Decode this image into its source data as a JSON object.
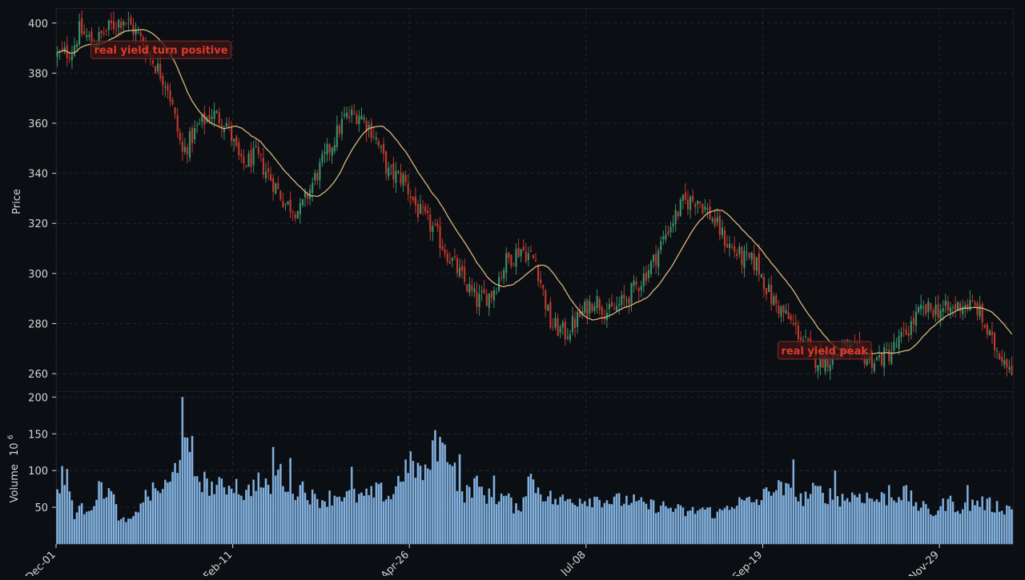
{
  "chart_data": {
    "type": "candlestick",
    "price_panel": {
      "ylabel": "Price",
      "ylim": [
        253,
        406
      ],
      "yticks": [
        260,
        280,
        300,
        320,
        340,
        360,
        380,
        400
      ],
      "moving_average": {
        "color": "#d8b67c"
      },
      "grid": true
    },
    "volume_panel": {
      "ylabel": "Volume",
      "ylabel_exponent": "10",
      "ylabel_power": "6",
      "ylim": [
        0,
        208
      ],
      "yticks": [
        50,
        100,
        150,
        200
      ],
      "bar_color": "#8ab4dc"
    },
    "x_axis": {
      "n_days": 390,
      "ticks": [
        {
          "label": "Dec-01",
          "index": 0
        },
        {
          "label": "Feb-11",
          "index": 72
        },
        {
          "label": "Apr-26",
          "index": 144
        },
        {
          "label": "Jul-08",
          "index": 216
        },
        {
          "label": "Sep-19",
          "index": 288
        },
        {
          "label": "Nov-29",
          "index": 360
        }
      ]
    },
    "colors": {
      "up": "#3d8f6a",
      "down": "#c0392b",
      "background": "#0b0e13",
      "grid": "#2a2f38"
    },
    "annotations": [
      {
        "text": "real yield turn positive",
        "index": 15,
        "price": 389
      },
      {
        "text": "real yield peak",
        "index": 295,
        "price": 269
      }
    ],
    "price_path": [
      [
        0,
        387
      ],
      [
        6,
        389
      ],
      [
        9,
        397
      ],
      [
        15,
        392
      ],
      [
        21,
        398
      ],
      [
        27,
        402
      ],
      [
        33,
        395
      ],
      [
        39,
        385
      ],
      [
        45,
        375
      ],
      [
        51,
        348
      ],
      [
        57,
        358
      ],
      [
        63,
        364
      ],
      [
        69,
        360
      ],
      [
        75,
        343
      ],
      [
        81,
        347
      ],
      [
        87,
        338
      ],
      [
        93,
        328
      ],
      [
        99,
        325
      ],
      [
        105,
        338
      ],
      [
        111,
        350
      ],
      [
        117,
        362
      ],
      [
        123,
        364
      ],
      [
        129,
        356
      ],
      [
        135,
        340
      ],
      [
        141,
        338
      ],
      [
        147,
        325
      ],
      [
        153,
        318
      ],
      [
        159,
        308
      ],
      [
        165,
        298
      ],
      [
        171,
        289
      ],
      [
        177,
        292
      ],
      [
        183,
        305
      ],
      [
        189,
        310
      ],
      [
        195,
        305
      ],
      [
        201,
        280
      ],
      [
        207,
        276
      ],
      [
        213,
        283
      ],
      [
        219,
        290
      ],
      [
        225,
        284
      ],
      [
        231,
        289
      ],
      [
        237,
        296
      ],
      [
        243,
        305
      ],
      [
        249,
        318
      ],
      [
        255,
        328
      ],
      [
        261,
        330
      ],
      [
        267,
        322
      ],
      [
        273,
        312
      ],
      [
        279,
        306
      ],
      [
        285,
        304
      ],
      [
        291,
        290
      ],
      [
        297,
        283
      ],
      [
        303,
        275
      ],
      [
        309,
        266
      ],
      [
        315,
        266
      ],
      [
        321,
        270
      ],
      [
        327,
        268
      ],
      [
        333,
        265
      ],
      [
        339,
        268
      ],
      [
        345,
        275
      ],
      [
        351,
        284
      ],
      [
        357,
        286
      ],
      [
        363,
        285
      ],
      [
        369,
        288
      ],
      [
        375,
        286
      ],
      [
        381,
        272
      ],
      [
        389,
        263
      ]
    ],
    "volume_path": [
      [
        0,
        72
      ],
      [
        4,
        88
      ],
      [
        7,
        42
      ],
      [
        14,
        54
      ],
      [
        18,
        78
      ],
      [
        22,
        68
      ],
      [
        26,
        30
      ],
      [
        31,
        32
      ],
      [
        34,
        60
      ],
      [
        40,
        72
      ],
      [
        46,
        80
      ],
      [
        51,
        138
      ],
      [
        56,
        98
      ],
      [
        61,
        80
      ],
      [
        67,
        76
      ],
      [
        72,
        84
      ],
      [
        77,
        66
      ],
      [
        81,
        88
      ],
      [
        86,
        72
      ],
      [
        90,
        102
      ],
      [
        95,
        72
      ],
      [
        100,
        78
      ],
      [
        105,
        60
      ],
      [
        110,
        62
      ],
      [
        115,
        68
      ],
      [
        120,
        64
      ],
      [
        126,
        64
      ],
      [
        131,
        72
      ],
      [
        136,
        64
      ],
      [
        141,
        100
      ],
      [
        145,
        108
      ],
      [
        150,
        92
      ],
      [
        155,
        138
      ],
      [
        160,
        128
      ],
      [
        165,
        62
      ],
      [
        170,
        82
      ],
      [
        176,
        64
      ],
      [
        183,
        64
      ],
      [
        188,
        42
      ],
      [
        192,
        92
      ],
      [
        197,
        72
      ],
      [
        203,
        58
      ],
      [
        209,
        60
      ],
      [
        215,
        62
      ],
      [
        221,
        62
      ],
      [
        227,
        58
      ],
      [
        233,
        60
      ],
      [
        239,
        52
      ],
      [
        245,
        52
      ],
      [
        251,
        48
      ],
      [
        257,
        42
      ],
      [
        263,
        48
      ],
      [
        269,
        40
      ],
      [
        275,
        56
      ],
      [
        281,
        56
      ],
      [
        287,
        60
      ],
      [
        291,
        78
      ],
      [
        297,
        72
      ],
      [
        303,
        60
      ],
      [
        309,
        72
      ],
      [
        315,
        66
      ],
      [
        321,
        62
      ],
      [
        327,
        68
      ],
      [
        333,
        60
      ],
      [
        339,
        64
      ],
      [
        345,
        70
      ],
      [
        351,
        52
      ],
      [
        357,
        42
      ],
      [
        363,
        58
      ],
      [
        369,
        48
      ],
      [
        375,
        58
      ],
      [
        381,
        52
      ],
      [
        389,
        48
      ]
    ],
    "volume_spikes": [
      [
        2,
        106
      ],
      [
        51,
        200
      ],
      [
        52,
        145
      ],
      [
        55,
        147
      ],
      [
        88,
        132
      ],
      [
        95,
        117
      ],
      [
        154,
        155
      ],
      [
        157,
        138
      ],
      [
        164,
        122
      ],
      [
        300,
        115
      ],
      [
        317,
        100
      ],
      [
        178,
        93
      ],
      [
        120,
        105
      ],
      [
        371,
        80
      ],
      [
        339,
        80
      ]
    ]
  }
}
